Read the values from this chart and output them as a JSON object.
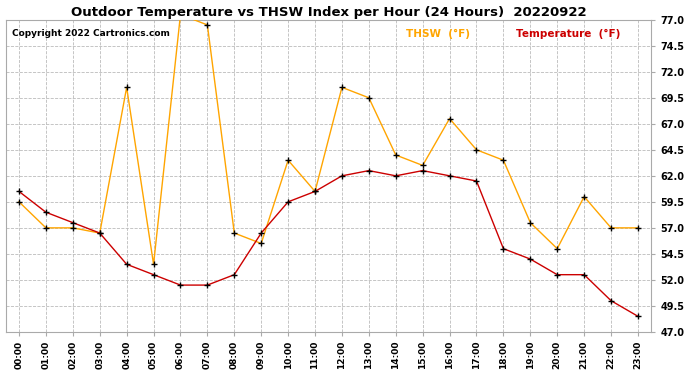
{
  "title": "Outdoor Temperature vs THSW Index per Hour (24 Hours)  20220922",
  "copyright": "Copyright 2022 Cartronics.com",
  "hours": [
    "00:00",
    "01:00",
    "02:00",
    "03:00",
    "04:00",
    "05:00",
    "06:00",
    "07:00",
    "08:00",
    "09:00",
    "10:00",
    "11:00",
    "12:00",
    "13:00",
    "14:00",
    "15:00",
    "16:00",
    "17:00",
    "18:00",
    "19:00",
    "20:00",
    "21:00",
    "22:00",
    "23:00"
  ],
  "temperature": [
    60.5,
    58.5,
    57.5,
    56.5,
    53.5,
    52.5,
    51.5,
    51.5,
    52.5,
    56.5,
    59.5,
    60.5,
    62.0,
    62.5,
    62.0,
    62.5,
    62.0,
    61.5,
    55.0,
    54.0,
    52.5,
    52.5,
    50.0,
    48.5
  ],
  "thsw": [
    59.5,
    57.0,
    57.0,
    56.5,
    70.5,
    53.5,
    77.5,
    76.5,
    56.5,
    55.5,
    63.5,
    60.5,
    70.5,
    69.5,
    64.0,
    63.0,
    67.5,
    64.5,
    63.5,
    57.5,
    55.0,
    60.0,
    57.0,
    57.0
  ],
  "thsw_color": "#FFA500",
  "temp_color": "#CC0000",
  "marker_color": "#000000",
  "title_color": "#000000",
  "copyright_color": "#000000",
  "legend_thsw_color": "#FFA500",
  "legend_temp_color": "#CC0000",
  "ylim_min": 47.0,
  "ylim_max": 77.0,
  "yticks": [
    47.0,
    49.5,
    52.0,
    54.5,
    57.0,
    59.5,
    62.0,
    64.5,
    67.0,
    69.5,
    72.0,
    74.5,
    77.0
  ],
  "background_color": "#ffffff",
  "grid_color": "#bbbbbb",
  "fig_width": 6.9,
  "fig_height": 3.75,
  "dpi": 100
}
